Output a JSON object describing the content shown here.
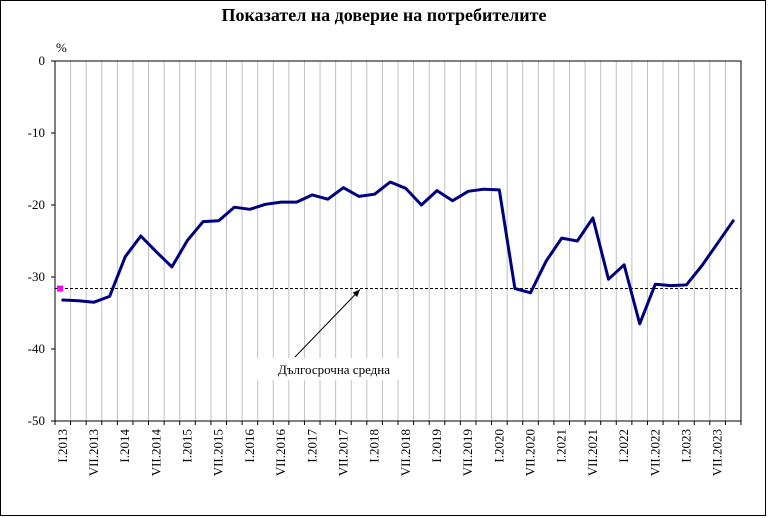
{
  "chart_data": {
    "type": "line",
    "title": "Показател на доверие на потребителите",
    "unit_label": "%",
    "ylim": [
      -50,
      0
    ],
    "yticks": [
      0,
      -10,
      -20,
      -30,
      -40,
      -50
    ],
    "grid": "vertical",
    "x": [
      "I.2013",
      "IV.2013",
      "VII.2013",
      "X.2013",
      "I.2014",
      "IV.2014",
      "VII.2014",
      "X.2014",
      "I.2015",
      "IV.2015",
      "VII.2015",
      "X.2015",
      "I.2016",
      "IV.2016",
      "VII.2016",
      "X.2016",
      "I.2017",
      "IV.2017",
      "VII.2017",
      "X.2017",
      "I.2018",
      "IV.2018",
      "VII.2018",
      "X.2018",
      "I.2019",
      "IV.2019",
      "VII.2019",
      "X.2019",
      "I.2020",
      "IV.2020",
      "VII.2020",
      "X.2020",
      "I.2021",
      "IV.2021",
      "VII.2021",
      "X.2021",
      "I.2022",
      "IV.2022",
      "VII.2022",
      "X.2022",
      "I.2023",
      "IV.2023",
      "VII.2023",
      "X.2023"
    ],
    "xtick_labels": [
      "I.2013",
      "VII.2013",
      "I.2014",
      "VII.2014",
      "I.2015",
      "VII.2015",
      "I.2016",
      "VII.2016",
      "I.2017",
      "VII.2017",
      "I.2018",
      "VII.2018",
      "I.2019",
      "VII.2019",
      "I.2020",
      "VII.2020",
      "I.2021",
      "VII.2021",
      "I.2022",
      "VII.2022",
      "I.2023",
      "VII.2023"
    ],
    "series": [
      {
        "color": "#00007f",
        "values": [
          -33.2,
          -33.3,
          -33.5,
          -32.7,
          -27.2,
          -24.3,
          -26.5,
          -28.6,
          -24.9,
          -22.3,
          -22.2,
          -20.3,
          -20.6,
          -19.9,
          -19.6,
          -19.6,
          -18.6,
          -19.2,
          -17.6,
          -18.8,
          -18.5,
          -16.8,
          -17.7,
          -20.0,
          -18.0,
          -19.4,
          -18.1,
          -17.8,
          -17.9,
          -31.6,
          -32.2,
          -27.8,
          -24.6,
          -25.0,
          -21.8,
          -30.3,
          -28.3,
          -36.5,
          -31.0,
          -31.2,
          -31.1,
          -28.4,
          -25.3,
          -22.2
        ]
      }
    ],
    "reference_line": {
      "value": -31.6,
      "style": "dashed",
      "annotation": "Дългосрочна средна",
      "marker_color": "#ff00ff"
    }
  }
}
